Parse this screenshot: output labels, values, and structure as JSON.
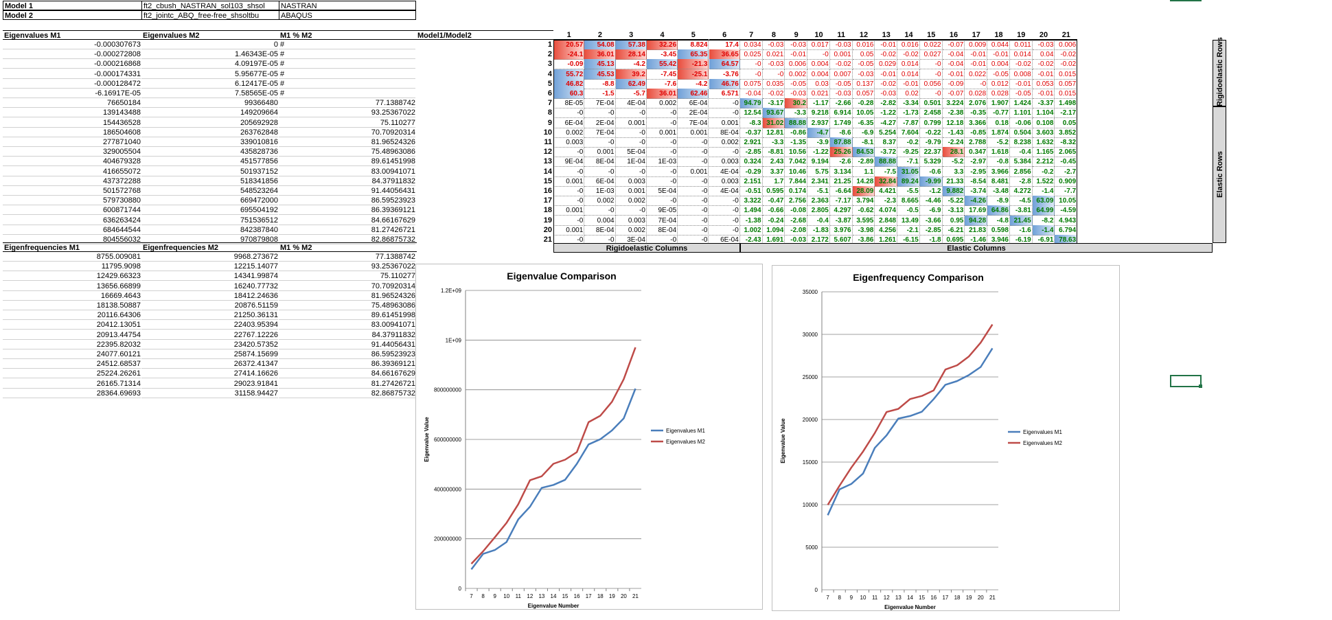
{
  "models": {
    "m1_label": "Model 1",
    "m1_file": "ft2_cbush_NASTRAN_sol103_shsol",
    "m1_solver": "NASTRAN",
    "m2_label": "Model 2",
    "m2_file": "ft2_jointc_ABQ_free-free_shsoltbu",
    "m2_solver": "ABAQUS"
  },
  "eig_table": {
    "headers": [
      "Eigenvalues M1",
      "Eigenvalues M2",
      "M1 % M2",
      "Model1/Model2"
    ],
    "rows": [
      [
        "-0.000307673",
        "0",
        "#"
      ],
      [
        "-0.000272808",
        "1.46343E-05",
        "#"
      ],
      [
        "-0.000216868",
        "4.09197E-05",
        "#"
      ],
      [
        "-0.000174331",
        "5.95677E-05",
        "#"
      ],
      [
        "-0.000128472",
        "6.12417E-05",
        "#"
      ],
      [
        "-6.16917E-05",
        "7.58565E-05",
        "#"
      ],
      [
        "76650184",
        "99366480",
        "77.1388742"
      ],
      [
        "139143488",
        "149209664",
        "93.25367022"
      ],
      [
        "154436528",
        "205692928",
        "75.110277"
      ],
      [
        "186504608",
        "263762848",
        "70.70920314"
      ],
      [
        "277871040",
        "339010816",
        "81.96524326"
      ],
      [
        "329005504",
        "435828736",
        "75.48963086"
      ],
      [
        "404679328",
        "451577856",
        "89.61451998"
      ],
      [
        "416655072",
        "501937152",
        "83.00941071"
      ],
      [
        "437372288",
        "518341856",
        "84.37911832"
      ],
      [
        "501572768",
        "548523264",
        "91.44056431"
      ],
      [
        "579730880",
        "669472000",
        "86.59523923"
      ],
      [
        "600871744",
        "695504192",
        "86.39369121"
      ],
      [
        "636263424",
        "751536512",
        "84.66167629"
      ],
      [
        "684644544",
        "842387840",
        "81.27426721"
      ],
      [
        "804556032",
        "970879808",
        "82.86875732"
      ]
    ]
  },
  "freq_table": {
    "headers": [
      "Eigenfrequencies M1",
      "Eigenfrequencies M2",
      "M1 % M2"
    ],
    "rows": [
      [
        "8755.009081",
        "9968.273672",
        "77.1388742"
      ],
      [
        "11795.9098",
        "12215.14077",
        "93.25367022"
      ],
      [
        "12429.66323",
        "14341.99874",
        "75.110277"
      ],
      [
        "13656.66899",
        "16240.77732",
        "70.70920314"
      ],
      [
        "16669.4643",
        "18412.24636",
        "81.96524326"
      ],
      [
        "18138.50887",
        "20876.51159",
        "75.48963086"
      ],
      [
        "20116.64306",
        "21250.36131",
        "89.61451998"
      ],
      [
        "20412.13051",
        "22403.95394",
        "83.00941071"
      ],
      [
        "20913.44754",
        "22767.12226",
        "84.37911832"
      ],
      [
        "22395.82032",
        "23420.57352",
        "91.44056431"
      ],
      [
        "24077.60121",
        "25874.15699",
        "86.59523923"
      ],
      [
        "24512.68537",
        "26372.41347",
        "86.39369121"
      ],
      [
        "25224.26261",
        "27414.16626",
        "84.66167629"
      ],
      [
        "26165.71314",
        "29023.91841",
        "81.27426721"
      ],
      [
        "28364.69693",
        "31158.94427",
        "82.86875732"
      ]
    ]
  },
  "matrix": {
    "col_headers": [
      "1",
      "2",
      "3",
      "4",
      "5",
      "6",
      "7",
      "8",
      "9",
      "10",
      "11",
      "12",
      "13",
      "14",
      "15",
      "16",
      "17",
      "18",
      "19",
      "20",
      "21"
    ],
    "rows": [
      [
        "20.57",
        "54.08",
        "57.38",
        "32.26",
        "8.824",
        "17.4",
        "0.034",
        "-0.03",
        "-0.03",
        "0.017",
        "-0.03",
        "0.016",
        "-0.01",
        "0.016",
        "0.022",
        "-0.07",
        "0.009",
        "0.044",
        "0.011",
        "-0.03",
        "0.006"
      ],
      [
        "-24.1",
        "36.01",
        "28.14",
        "-3.45",
        "65.35",
        "36.65",
        "0.025",
        "0.021",
        "-0.01",
        "-0",
        "0.001",
        "0.05",
        "-0.02",
        "-0.02",
        "0.027",
        "-0.04",
        "-0.01",
        "-0.01",
        "0.014",
        "0.04",
        "-0.02"
      ],
      [
        "-0.09",
        "45.13",
        "-4.2",
        "55.42",
        "-21.3",
        "64.57",
        "-0",
        "-0.03",
        "0.006",
        "0.004",
        "-0.02",
        "-0.05",
        "0.029",
        "0.014",
        "-0",
        "-0.04",
        "-0.01",
        "0.004",
        "-0.02",
        "-0.02",
        "-0.02"
      ],
      [
        "55.72",
        "45.53",
        "39.2",
        "-7.45",
        "-25.1",
        "-3.76",
        "-0",
        "-0",
        "0.002",
        "0.004",
        "0.007",
        "-0.03",
        "-0.01",
        "0.014",
        "-0",
        "-0.01",
        "0.022",
        "-0.05",
        "0.008",
        "-0.01",
        "0.015"
      ],
      [
        "46.82",
        "-8.8",
        "62.49",
        "-7.6",
        "-4.2",
        "46.76",
        "0.075",
        "0.035",
        "-0.05",
        "0.03",
        "-0.05",
        "0.137",
        "-0.02",
        "-0.01",
        "0.056",
        "-0.09",
        "-0",
        "0.012",
        "-0.01",
        "0.053",
        "0.057"
      ],
      [
        "60.3",
        "-1.5",
        "-5.7",
        "36.01",
        "62.46",
        "6.571",
        "-0.04",
        "-0.02",
        "-0.03",
        "0.021",
        "-0.03",
        "0.057",
        "-0.03",
        "0.02",
        "-0",
        "-0.07",
        "0.028",
        "0.028",
        "-0.05",
        "-0.01",
        "0.015"
      ],
      [
        "8E-05",
        "7E-04",
        "4E-04",
        "0.002",
        "6E-04",
        "-0",
        "94.79",
        "-3.17",
        "30.2",
        "-1.17",
        "-2.66",
        "-0.28",
        "-2.82",
        "-3.34",
        "0.501",
        "3.224",
        "2.076",
        "1.907",
        "1.424",
        "-3.37",
        "1.498"
      ],
      [
        "-0",
        "-0",
        "-0",
        "-0",
        "2E-04",
        "-0",
        "12.54",
        "93.67",
        "-3.3",
        "9.218",
        "6.914",
        "10.05",
        "-1.22",
        "-1.73",
        "2.458",
        "-2.38",
        "-0.35",
        "-0.77",
        "1.101",
        "1.104",
        "-2.17"
      ],
      [
        "6E-04",
        "2E-04",
        "0.001",
        "-0",
        "7E-04",
        "0.001",
        "-8.3",
        "31.02",
        "88.88",
        "2.937",
        "1.749",
        "-6.35",
        "-4.27",
        "-7.87",
        "0.799",
        "12.18",
        "3.366",
        "0.18",
        "-0.06",
        "0.108",
        "0.05"
      ],
      [
        "0.002",
        "7E-04",
        "-0",
        "0.001",
        "0.001",
        "8E-04",
        "-0.37",
        "12.81",
        "-0.86",
        "-4.7",
        "-8.6",
        "-6.9",
        "5.254",
        "7.604",
        "-0.22",
        "-1.43",
        "-0.85",
        "1.874",
        "0.504",
        "3.603",
        "3.852"
      ],
      [
        "0.003",
        "-0",
        "-0",
        "-0",
        "-0",
        "0.002",
        "2.921",
        "-3.3",
        "-1.35",
        "-3.9",
        "87.88",
        "-8.1",
        "8.37",
        "-0.2",
        "-9.79",
        "-2.24",
        "2.788",
        "-5.2",
        "8.238",
        "1.632",
        "-8.32"
      ],
      [
        "-0",
        "0.001",
        "5E-04",
        "-0",
        "-0",
        "-0",
        "-2.85",
        "-8.81",
        "10.56",
        "-1.22",
        "25.26",
        "84.53",
        "-3.72",
        "-9.25",
        "22.37",
        "28.1",
        "0.347",
        "1.618",
        "-0.4",
        "1.165",
        "2.065"
      ],
      [
        "9E-04",
        "8E-04",
        "1E-04",
        "1E-03",
        "-0",
        "0.003",
        "0.324",
        "2.43",
        "7.042",
        "9.194",
        "-2.6",
        "-2.89",
        "88.88",
        "-7.1",
        "5.329",
        "-5.2",
        "-2.97",
        "-0.8",
        "5.384",
        "2.212",
        "-0.45"
      ],
      [
        "-0",
        "-0",
        "-0",
        "-0",
        "0.001",
        "4E-04",
        "-0.29",
        "3.37",
        "10.46",
        "5.75",
        "3.134",
        "1.1",
        "-7.5",
        "31.05",
        "-0.6",
        "3.3",
        "-2.95",
        "3.966",
        "2.856",
        "-0.2",
        "-2.7"
      ],
      [
        "0.001",
        "6E-04",
        "0.003",
        "-0",
        "-0",
        "0.003",
        "2.151",
        "1.7",
        "7.844",
        "2.341",
        "21.25",
        "14.28",
        "32.84",
        "89.24",
        "-9.99",
        "21.33",
        "-8.54",
        "8.481",
        "-2.8",
        "1.522",
        "0.909"
      ],
      [
        "-0",
        "1E-03",
        "0.001",
        "5E-04",
        "-0",
        "4E-04",
        "-0.51",
        "0.595",
        "0.174",
        "-5.1",
        "-6.64",
        "28.09",
        "4.421",
        "-5.5",
        "-1.2",
        "9.882",
        "-3.74",
        "-3.48",
        "4.272",
        "-1.4",
        "-7.7"
      ],
      [
        "-0",
        "0.002",
        "0.002",
        "-0",
        "-0",
        "-0",
        "3.322",
        "-0.47",
        "2.756",
        "2.363",
        "-7.17",
        "3.794",
        "-2.3",
        "8.665",
        "-4.46",
        "-5.22",
        "-4.26",
        "-8.9",
        "-4.5",
        "63.09",
        "10.05"
      ],
      [
        "0.001",
        "-0",
        "-0",
        "9E-05",
        "-0",
        "-0",
        "1.494",
        "-0.66",
        "-0.08",
        "2.805",
        "4.297",
        "-0.62",
        "4.074",
        "-0.5",
        "-6.9",
        "-3.13",
        "17.69",
        "64.86",
        "-3.81",
        "64.99",
        "-4.59"
      ],
      [
        "-0",
        "0.004",
        "0.003",
        "7E-04",
        "-0",
        "-0",
        "-1.38",
        "-0.24",
        "-2.68",
        "-0.4",
        "-3.87",
        "3.595",
        "2.848",
        "13.49",
        "-3.66",
        "0.95",
        "94.28",
        "-4.8",
        "21.45",
        "-8.2",
        "4.943"
      ],
      [
        "0.001",
        "8E-04",
        "0.002",
        "8E-04",
        "-0",
        "-0",
        "1.002",
        "1.094",
        "-2.08",
        "-1.83",
        "3.976",
        "-3.98",
        "4.256",
        "-2.1",
        "-2.85",
        "-6.21",
        "21.83",
        "0.598",
        "-1.6",
        "-1.4",
        "6.794"
      ],
      [
        "-0",
        "-0",
        "3E-04",
        "-0",
        "-0",
        "6E-04",
        "-2.43",
        "1.691",
        "-0.03",
        "2.172",
        "5.607",
        "-3.86",
        "1.261",
        "-6.15",
        "-1.8",
        "0.695",
        "-1.46",
        "3.946",
        "-6.19",
        "-6.91",
        "78.63"
      ]
    ],
    "group_rows": {
      "rigid": "Rigidoelastic Rows",
      "elastic": "Elastic Rows"
    },
    "group_cols": {
      "rigid": "Rigidoelastic Columns",
      "elastic": "Elastic Columns"
    }
  },
  "chart_data": [
    {
      "type": "line",
      "title": "Eigenvalue Comparison",
      "xlabel": "Eigenvalue Number",
      "ylabel": "Eigenvalue Value",
      "categories": [
        "7",
        "8",
        "9",
        "10",
        "11",
        "12",
        "13",
        "14",
        "15",
        "16",
        "17",
        "18",
        "19",
        "20",
        "21"
      ],
      "ylim": [
        0,
        1200000000
      ],
      "yticks": [
        "0",
        "200000000",
        "400000000",
        "600000000",
        "800000000",
        "1E+09",
        "1.2E+09"
      ],
      "legend": "right",
      "series": [
        {
          "name": "Eigenvalues M1",
          "color": "#4a7ebb",
          "values": [
            76650184,
            139143488,
            154436528,
            186504608,
            277871040,
            329005504,
            404679328,
            416655072,
            437372288,
            501572768,
            579730880,
            600871744,
            636263424,
            684644544,
            804556032
          ]
        },
        {
          "name": "Eigenvalues M2",
          "color": "#be4b48",
          "values": [
            99366480,
            149209664,
            205692928,
            263762848,
            339010816,
            435828736,
            451577856,
            501937152,
            518341856,
            548523264,
            669472000,
            695504192,
            751536512,
            842387840,
            970879808
          ]
        }
      ]
    },
    {
      "type": "line",
      "title": "Eigenfrequency Comparison",
      "xlabel": "Eigenvalue Number",
      "ylabel": "Eigenvalue Value",
      "categories": [
        "7",
        "8",
        "9",
        "10",
        "11",
        "12",
        "13",
        "14",
        "15",
        "16",
        "17",
        "18",
        "19",
        "20",
        "21"
      ],
      "ylim": [
        0,
        35000
      ],
      "yticks": [
        "0",
        "5000",
        "10000",
        "15000",
        "20000",
        "25000",
        "30000",
        "35000"
      ],
      "legend": "right",
      "series": [
        {
          "name": "Eigenvalues M1",
          "color": "#4a7ebb",
          "values": [
            8755.009081,
            11795.9098,
            12429.66323,
            13656.66899,
            16669.4643,
            18138.50887,
            20116.64306,
            20412.13051,
            20913.44754,
            22395.82032,
            24077.60121,
            24512.68537,
            25224.26261,
            26165.71314,
            28364.69693
          ]
        },
        {
          "name": "Eigenvalues M2",
          "color": "#be4b48",
          "values": [
            9968.273672,
            12215.14077,
            14341.99874,
            16240.77732,
            18412.24636,
            20876.51159,
            21250.36131,
            22403.95394,
            22767.12226,
            23420.57352,
            25874.15699,
            26372.41347,
            27414.16626,
            29023.91841,
            31158.94427
          ]
        }
      ]
    }
  ]
}
